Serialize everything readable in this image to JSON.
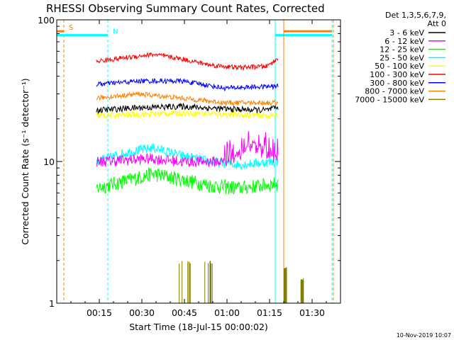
{
  "chart_data": {
    "type": "line",
    "title": "RHESSI Observing Summary Count Rates, Corrected",
    "xlabel": "Start Time (18-Jul-15 00:00:02)",
    "ylabel": "Corrected Count Rate (s⁻¹ detector⁻¹)",
    "yscale": "log",
    "ylim": [
      1,
      100
    ],
    "xlim_minutes": [
      0,
      100
    ],
    "x_ticks": [
      {
        "label": "00:15",
        "minute": 15
      },
      {
        "label": "00:30",
        "minute": 30
      },
      {
        "label": "00:45",
        "minute": 45
      },
      {
        "label": "01:00",
        "minute": 60
      },
      {
        "label": "01:15",
        "minute": 75
      },
      {
        "label": "01:30",
        "minute": 90
      }
    ],
    "y_ticks": [
      {
        "label": "1",
        "value": 1
      },
      {
        "label": "10",
        "value": 10
      },
      {
        "label": "100",
        "value": 100
      }
    ],
    "legend_header": [
      "Det 1,3,5,6,7,9,",
      "Att 0"
    ],
    "legend_position": "right",
    "series": [
      {
        "name": "3 - 6 keV",
        "color": "#000000",
        "start": 14,
        "end": 78,
        "points": [
          [
            0,
            23
          ],
          [
            15,
            24
          ],
          [
            30,
            24.5
          ],
          [
            45,
            23.5
          ],
          [
            60,
            23
          ],
          [
            64,
            24
          ],
          [
            70,
            23
          ]
        ],
        "noise": 0.05
      },
      {
        "name": "6 - 12 keV",
        "color": "#ff00ff",
        "start": 14,
        "end": 78,
        "points": [
          [
            0,
            10
          ],
          [
            20,
            10.5
          ],
          [
            30,
            10
          ],
          [
            45,
            10
          ],
          [
            50,
            11
          ],
          [
            55,
            13
          ],
          [
            60,
            11
          ],
          [
            64,
            10.5
          ]
        ],
        "noise": 0.09,
        "spikes": [
          [
            45,
            64,
            14
          ]
        ]
      },
      {
        "name": "12 - 25 keV",
        "color": "#00ff00",
        "start": 14,
        "end": 78,
        "points": [
          [
            0,
            6.5
          ],
          [
            10,
            7.3
          ],
          [
            20,
            8.2
          ],
          [
            30,
            7.5
          ],
          [
            40,
            6.8
          ],
          [
            50,
            6.5
          ],
          [
            64,
            7
          ]
        ],
        "noise": 0.12
      },
      {
        "name": "25 - 50 keV",
        "color": "#00ffff",
        "start": 14,
        "end": 78,
        "points": [
          [
            0,
            10
          ],
          [
            10,
            11.5
          ],
          [
            20,
            12.5
          ],
          [
            30,
            11
          ],
          [
            40,
            10
          ],
          [
            50,
            9.5
          ],
          [
            64,
            10
          ]
        ],
        "noise": 0.08
      },
      {
        "name": "50 - 100 keV",
        "color": "#ffff00",
        "start": 14,
        "end": 78,
        "points": [
          [
            0,
            21
          ],
          [
            15,
            21.5
          ],
          [
            30,
            22
          ],
          [
            45,
            21.5
          ],
          [
            64,
            21
          ]
        ],
        "noise": 0.05
      },
      {
        "name": "100 - 300 keV",
        "color": "#ff0000",
        "start": 14,
        "end": 78,
        "points": [
          [
            0,
            51
          ],
          [
            10,
            54
          ],
          [
            20,
            57
          ],
          [
            30,
            53
          ],
          [
            40,
            48
          ],
          [
            50,
            46
          ],
          [
            60,
            47
          ],
          [
            64,
            53
          ]
        ],
        "noise": 0.04
      },
      {
        "name": "300 - 800 keV",
        "color": "#0000ff",
        "start": 14,
        "end": 78,
        "points": [
          [
            0,
            35
          ],
          [
            15,
            37
          ],
          [
            30,
            37
          ],
          [
            45,
            33
          ],
          [
            64,
            34
          ]
        ],
        "noise": 0.04
      },
      {
        "name": "800 - 7000 keV",
        "color": "#ff8000",
        "start": 14,
        "end": 78,
        "points": [
          [
            0,
            28
          ],
          [
            15,
            30
          ],
          [
            30,
            28
          ],
          [
            45,
            26
          ],
          [
            64,
            26
          ]
        ],
        "noise": 0.04
      },
      {
        "name": "7000 - 15000 keV",
        "color": "#808000",
        "start": 14,
        "end": 78,
        "points": [
          [
            0,
            1
          ],
          [
            64,
            1
          ]
        ],
        "noise": 0,
        "bursts": [
          [
            29,
            41,
            2
          ],
          [
            66,
            67,
            1.8
          ],
          [
            72,
            73,
            1.5
          ]
        ]
      }
    ],
    "markers": [
      {
        "label": "S",
        "color": "#ff8000",
        "minute": 2.5,
        "bar_from": 0,
        "bar_to": 2.5,
        "bar_value": 83,
        "style": "dashed"
      },
      {
        "label": "N",
        "color": "#00ffff",
        "minute": 18,
        "bar_from": 0,
        "bar_to": 18,
        "bar_value": 78,
        "style": "dashed"
      },
      {
        "label": "",
        "color": "#00ffff",
        "minute": 77,
        "bar_from": 77,
        "bar_to": 97,
        "bar_value": 78,
        "style": "solid"
      },
      {
        "label": "",
        "color": "#ff8000",
        "minute": 80,
        "bar_from": 80,
        "bar_to": 97,
        "bar_value": 83,
        "style": "solid"
      },
      {
        "label": "",
        "color": "#00ffff",
        "minute": 97,
        "style": "dashed"
      },
      {
        "label": "",
        "color": "#ff8000",
        "minute": 97.5,
        "style": "dashed"
      }
    ],
    "timestamp": "10-Nov-2019 10:07",
    "grid": false
  }
}
